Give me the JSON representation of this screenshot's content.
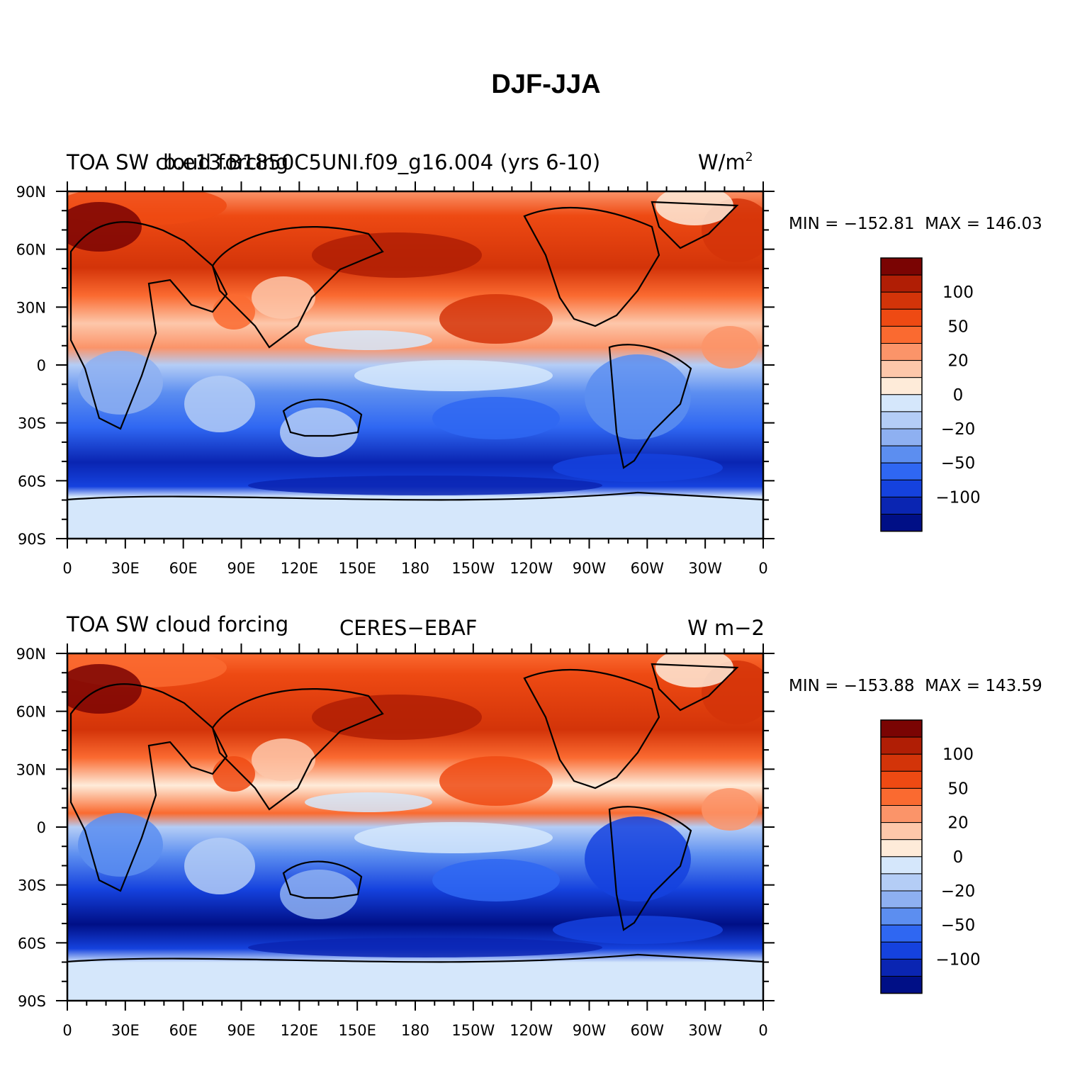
{
  "figure_title": "DJF-JJA",
  "chart_data": [
    {
      "type": "heatmap",
      "title_left": "TOA SW cloud forcing",
      "title_center": "b.e13.B1850C5UNI.f09_g16.004 (yrs 6-10)",
      "title_right": "W/m",
      "title_right_sup": "2",
      "stats": "MIN = −152.81  MAX = 146.03",
      "min": -152.81,
      "max": 146.03,
      "x_ticks": [
        "0",
        "30E",
        "60E",
        "90E",
        "120E",
        "150E",
        "180",
        "150W",
        "120W",
        "90W",
        "60W",
        "30W",
        "0"
      ],
      "y_ticks": [
        "90N",
        "60N",
        "30N",
        "0",
        "30S",
        "60S",
        "90S"
      ],
      "xlim": [
        0,
        360
      ],
      "ylim": [
        -90,
        90
      ]
    },
    {
      "type": "heatmap",
      "title_left": "TOA SW cloud forcing",
      "title_center": "CERES−EBAF",
      "title_right": "W m−2",
      "stats": "MIN = −153.88  MAX = 143.59",
      "min": -153.88,
      "max": 143.59,
      "x_ticks": [
        "0",
        "30E",
        "60E",
        "90E",
        "120E",
        "150E",
        "180",
        "150W",
        "120W",
        "90W",
        "60W",
        "30W",
        "0"
      ],
      "y_ticks": [
        "90N",
        "60N",
        "30N",
        "0",
        "30S",
        "60S",
        "90S"
      ],
      "xlim": [
        0,
        360
      ],
      "ylim": [
        -90,
        90
      ]
    }
  ],
  "colorbar": {
    "levels": [
      -120,
      -100,
      -80,
      -50,
      -40,
      -20,
      -10,
      0,
      10,
      20,
      40,
      50,
      80,
      100,
      120
    ],
    "labels": [
      "100",
      "50",
      "20",
      "0",
      "−20",
      "−50",
      "−100"
    ],
    "colors": [
      "#7a0403",
      "#b01e05",
      "#d33409",
      "#ee4a13",
      "#fa6a30",
      "#fb9469",
      "#fdc7aa",
      "#feebd9",
      "#d5e7fb",
      "#b4cdf6",
      "#8eb0f1",
      "#5c8ef0",
      "#2f67f2",
      "#1542de",
      "#0a25b2",
      "#000f86"
    ]
  }
}
